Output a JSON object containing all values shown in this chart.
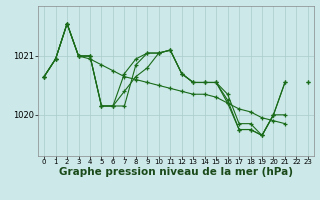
{
  "background_color": "#cce8e8",
  "plot_bg_color": "#cce8e8",
  "grid_color": "#aacccc",
  "line_color": "#1a6b1a",
  "xlabel": "Graphe pression niveau de la mer (hPa)",
  "xlabel_fontsize": 7.5,
  "ylabel_ticks": [
    1020,
    1021
  ],
  "xlim": [
    -0.5,
    23.5
  ],
  "ylim": [
    1019.3,
    1021.85
  ],
  "xticks": [
    0,
    1,
    2,
    3,
    4,
    5,
    6,
    7,
    8,
    9,
    10,
    11,
    12,
    13,
    14,
    15,
    16,
    17,
    18,
    19,
    20,
    21,
    22,
    23
  ],
  "series": [
    [
      1020.65,
      1020.95,
      1021.55,
      1021.0,
      1021.0,
      1020.15,
      1020.15,
      1020.15,
      1020.85,
      1021.05,
      1021.05,
      1021.1,
      1020.7,
      1020.55,
      1020.55,
      1020.55,
      1020.25,
      1019.75,
      1019.75,
      1019.65,
      1020.0,
      1020.55,
      null,
      null
    ],
    [
      1020.65,
      1020.95,
      1021.55,
      1021.0,
      1021.0,
      1020.15,
      1020.15,
      1020.7,
      1020.95,
      1021.05,
      1021.05,
      1021.1,
      1020.7,
      1020.55,
      1020.55,
      1020.55,
      1020.35,
      1019.85,
      1019.85,
      1019.65,
      1020.0,
      1020.55,
      null,
      null
    ],
    [
      1020.65,
      1020.95,
      1021.55,
      1021.0,
      1021.0,
      1020.15,
      1020.15,
      1020.4,
      1020.65,
      1020.8,
      1021.05,
      1021.1,
      1020.7,
      1020.55,
      1020.55,
      1020.55,
      1020.2,
      1019.75,
      1019.75,
      1019.65,
      1020.0,
      1020.0,
      null,
      1020.55
    ],
    [
      1020.65,
      1020.95,
      1021.55,
      1021.0,
      1020.95,
      1020.85,
      1020.75,
      1020.65,
      1020.6,
      1020.55,
      1020.5,
      1020.45,
      1020.4,
      1020.35,
      1020.35,
      1020.3,
      1020.2,
      1020.1,
      1020.05,
      1019.95,
      1019.9,
      1019.85,
      null,
      1020.55
    ]
  ]
}
